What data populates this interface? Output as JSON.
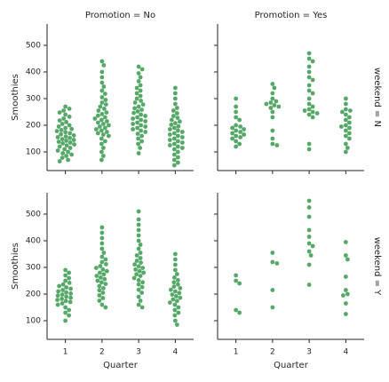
{
  "chart_data": {
    "type": "swarm",
    "xlabel": "Quarter",
    "ylabel": "Smoothies",
    "categories": [
      "1",
      "2",
      "3",
      "4"
    ],
    "ylim": [
      30,
      580
    ],
    "yticks": [
      100,
      200,
      300,
      400,
      500
    ],
    "color": "#55a868",
    "col_titles": [
      "Promotion = No",
      "Promotion = Yes"
    ],
    "row_titles": [
      "weekend = N",
      "weekend = Y"
    ],
    "panels": [
      {
        "values": [
          [
            270,
            262,
            255,
            248,
            240,
            232,
            225,
            218,
            212,
            205,
            200,
            195,
            190,
            186,
            182,
            178,
            174,
            170,
            166,
            162,
            158,
            155,
            152,
            148,
            145,
            142,
            138,
            135,
            132,
            128,
            124,
            120,
            115,
            110,
            105,
            100,
            95,
            90,
            85,
            78,
            70,
            65
          ],
          [
            440,
            425,
            400,
            380,
            360,
            345,
            330,
            318,
            305,
            295,
            285,
            278,
            270,
            262,
            255,
            248,
            242,
            236,
            230,
            225,
            220,
            215,
            210,
            205,
            200,
            195,
            190,
            185,
            180,
            175,
            170,
            165,
            160,
            150,
            140,
            130,
            115,
            100,
            85,
            70
          ],
          [
            420,
            410,
            395,
            380,
            365,
            350,
            340,
            330,
            320,
            310,
            300,
            292,
            285,
            278,
            270,
            264,
            258,
            252,
            246,
            240,
            235,
            230,
            225,
            220,
            215,
            210,
            205,
            200,
            195,
            190,
            185,
            180,
            175,
            168,
            160,
            150,
            140,
            130,
            115,
            95
          ],
          [
            340,
            320,
            300,
            280,
            265,
            255,
            245,
            235,
            228,
            220,
            214,
            208,
            202,
            196,
            190,
            185,
            180,
            175,
            170,
            165,
            160,
            155,
            150,
            145,
            140,
            135,
            130,
            125,
            120,
            115,
            110,
            100,
            90,
            80,
            70,
            60,
            50
          ]
        ]
      },
      {
        "values": [
          [
            300,
            270,
            250,
            230,
            220,
            200,
            195,
            190,
            185,
            180,
            175,
            170,
            165,
            160,
            155,
            150,
            140,
            130,
            120
          ],
          [
            355,
            340,
            320,
            300,
            290,
            285,
            280,
            275,
            270,
            265,
            250,
            230,
            180,
            150,
            130,
            125
          ],
          [
            470,
            450,
            440,
            420,
            400,
            380,
            370,
            350,
            330,
            320,
            300,
            280,
            270,
            260,
            255,
            250,
            245,
            240,
            230,
            130,
            110
          ],
          [
            300,
            280,
            260,
            255,
            250,
            240,
            230,
            220,
            210,
            200,
            195,
            190,
            180,
            170,
            160,
            150,
            130,
            115,
            100
          ]
        ]
      },
      {
        "values": [
          [
            290,
            280,
            270,
            260,
            250,
            242,
            236,
            230,
            225,
            220,
            215,
            210,
            206,
            202,
            198,
            194,
            190,
            186,
            182,
            178,
            174,
            170,
            165,
            160,
            150,
            140,
            130,
            120,
            100
          ],
          [
            450,
            430,
            410,
            390,
            370,
            355,
            340,
            330,
            320,
            312,
            305,
            298,
            292,
            286,
            280,
            274,
            268,
            262,
            256,
            250,
            244,
            238,
            230,
            222,
            214,
            205,
            195,
            185,
            175,
            160,
            150
          ],
          [
            510,
            480,
            460,
            440,
            420,
            400,
            385,
            370,
            355,
            345,
            335,
            325,
            318,
            311,
            304,
            298,
            292,
            286,
            280,
            274,
            268,
            260,
            252,
            244,
            236,
            226,
            216,
            205,
            190,
            175,
            160,
            150
          ],
          [
            350,
            330,
            310,
            290,
            275,
            262,
            252,
            244,
            236,
            228,
            222,
            216,
            210,
            204,
            198,
            192,
            186,
            180,
            174,
            168,
            160,
            150,
            140,
            130,
            120,
            100,
            85
          ]
        ]
      },
      {
        "values": [
          [
            270,
            250,
            240,
            140,
            130
          ],
          [
            355,
            320,
            315,
            215,
            150
          ],
          [
            550,
            525,
            490,
            440,
            415,
            390,
            380,
            360,
            345,
            310,
            235
          ],
          [
            395,
            345,
            330,
            265,
            215,
            200,
            195,
            165,
            125
          ]
        ]
      }
    ]
  }
}
